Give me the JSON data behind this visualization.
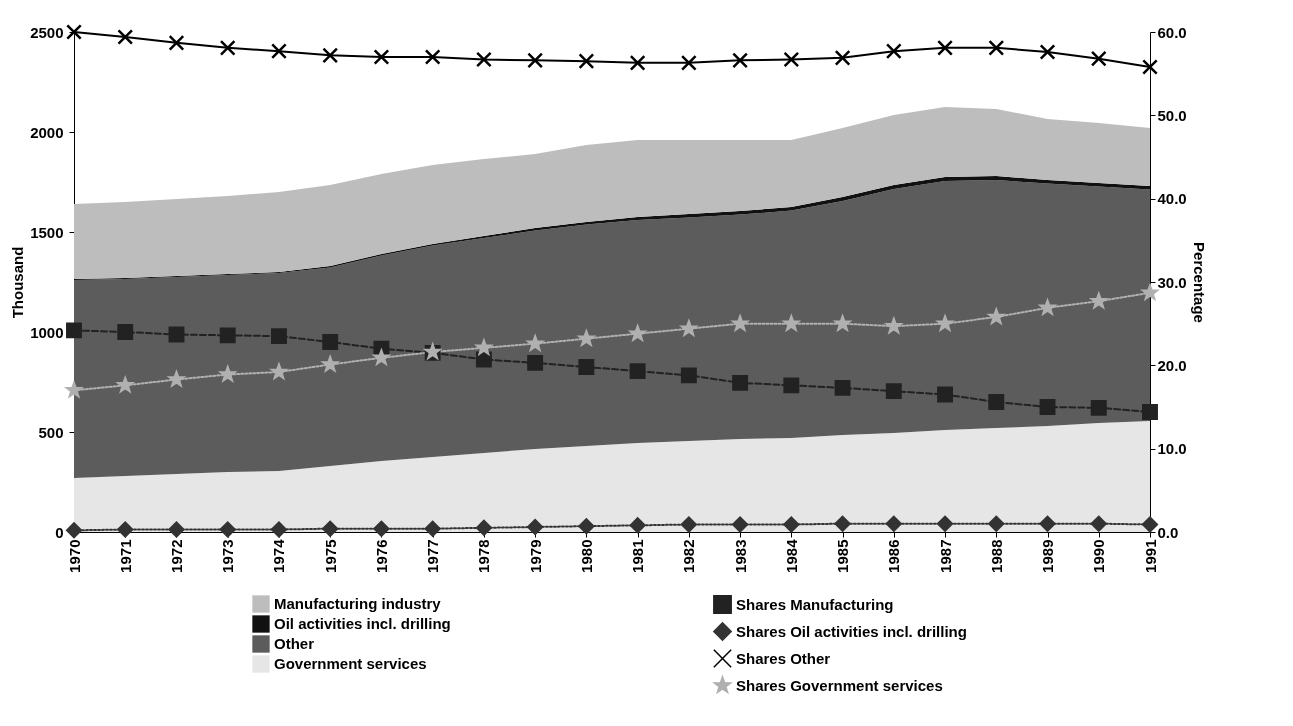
{
  "chart_data": {
    "type": "area",
    "stacked": true,
    "ylabel": "Thousand",
    "y2label": "Percentage",
    "categories": [
      "1970",
      "1971",
      "1972",
      "1973",
      "1974",
      "1975",
      "1976",
      "1977",
      "1978",
      "1979",
      "1980",
      "1981",
      "1982",
      "1983",
      "1984",
      "1985",
      "1986",
      "1987",
      "1988",
      "1989",
      "1990",
      "1991"
    ],
    "ylim": [
      0,
      2500
    ],
    "yticks": [
      0,
      500,
      1000,
      1500,
      2000,
      2500
    ],
    "y2lim": [
      0,
      60
    ],
    "y2ticks": [
      {
        "value": 0,
        "label": "0.0"
      },
      {
        "value": 10,
        "label": "10.0"
      },
      {
        "value": 20,
        "label": "20.0"
      },
      {
        "value": 30,
        "label": "30.0"
      },
      {
        "value": 40,
        "label": "40.0"
      },
      {
        "value": 50,
        "label": "50.0"
      },
      {
        "value": 60,
        "label": "60.0"
      }
    ],
    "grid": false,
    "legend": "bottom",
    "series": [
      {
        "name": "Government services",
        "color": "#e6e6e6",
        "values": [
          270,
          280,
          290,
          300,
          305,
          330,
          355,
          375,
          395,
          415,
          430,
          445,
          455,
          465,
          470,
          485,
          495,
          510,
          520,
          530,
          545,
          555
        ]
      },
      {
        "name": "Other",
        "color": "#5c5c5c",
        "values": [
          990,
          985,
          985,
          985,
          990,
          992,
          1027,
          1057,
          1075,
          1093,
          1107,
          1115,
          1117,
          1122,
          1137,
          1170,
          1220,
          1245,
          1240,
          1212,
          1182,
          1157
        ]
      },
      {
        "name": "Oil activities  incl. drilling",
        "color": "#111111",
        "values": [
          5,
          5,
          5,
          5,
          5,
          8,
          8,
          8,
          10,
          12,
          13,
          15,
          18,
          18,
          18,
          20,
          20,
          20,
          20,
          18,
          18,
          18
        ]
      },
      {
        "name": "Manufacturing industry",
        "color": "#bdbdbd",
        "values": [
          375,
          380,
          385,
          390,
          400,
          405,
          400,
          395,
          385,
          370,
          385,
          385,
          370,
          355,
          335,
          345,
          350,
          350,
          335,
          305,
          300,
          290
        ]
      },
      {
        "name": "Shares Manufacturing",
        "type": "line",
        "axis": "y2",
        "color": "#222222",
        "marker": "square",
        "line_style": "dashed",
        "values": [
          24.2,
          24.0,
          23.7,
          23.6,
          23.5,
          22.8,
          22.0,
          21.5,
          20.7,
          20.3,
          19.8,
          19.3,
          18.8,
          17.9,
          17.6,
          17.3,
          16.9,
          16.5,
          15.6,
          15.0,
          14.9,
          14.4
        ]
      },
      {
        "name": "Shares Oil activities  incl. drilling",
        "type": "line",
        "axis": "y2",
        "color": "#333333",
        "marker": "diamond",
        "line_style": "dotted",
        "values": [
          0.2,
          0.3,
          0.3,
          0.3,
          0.3,
          0.4,
          0.4,
          0.4,
          0.5,
          0.6,
          0.7,
          0.8,
          0.9,
          0.9,
          0.9,
          1.0,
          1.0,
          1.0,
          1.0,
          1.0,
          1.0,
          0.9
        ]
      },
      {
        "name": "Shares Other",
        "type": "line",
        "axis": "y2",
        "color": "#000000",
        "marker": "cross",
        "line_style": "solid",
        "values": [
          60.0,
          59.4,
          58.7,
          58.1,
          57.7,
          57.2,
          57.0,
          57.0,
          56.7,
          56.6,
          56.5,
          56.3,
          56.3,
          56.6,
          56.7,
          56.9,
          57.7,
          58.1,
          58.1,
          57.6,
          56.8,
          55.8
        ]
      },
      {
        "name": "Shares Government services",
        "type": "line",
        "axis": "y2",
        "color": "#b0b0b0",
        "marker": "star",
        "line_style": "dotted",
        "values": [
          17.0,
          17.6,
          18.3,
          18.9,
          19.2,
          20.1,
          20.9,
          21.6,
          22.1,
          22.6,
          23.2,
          23.8,
          24.4,
          25.0,
          25.0,
          25.0,
          24.7,
          25.0,
          25.8,
          26.9,
          27.7,
          28.7
        ]
      }
    ]
  }
}
